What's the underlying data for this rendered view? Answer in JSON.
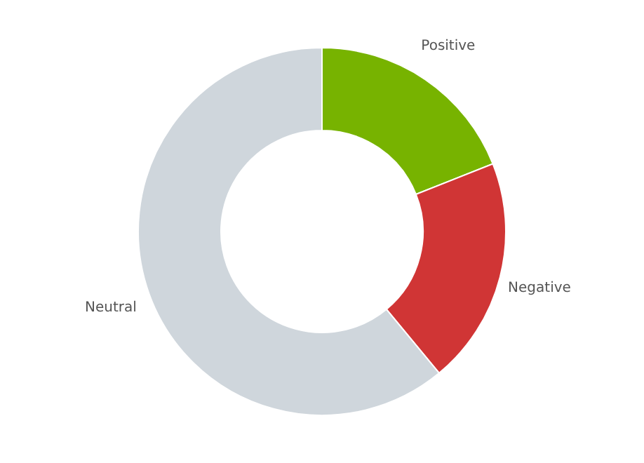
{
  "chart_data": {
    "type": "donut",
    "categories": [
      "Positive",
      "Negative",
      "Neutral"
    ],
    "values": [
      19,
      20,
      61
    ],
    "colors": [
      "#77b300",
      "#d03535",
      "#cfd6dc"
    ]
  }
}
